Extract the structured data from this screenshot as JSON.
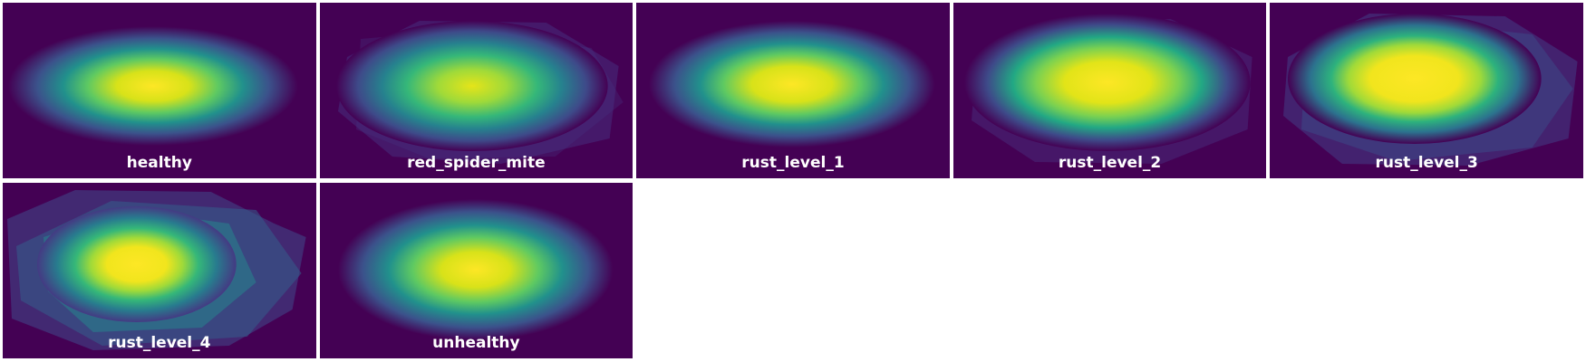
{
  "colors": {
    "background": "#440154",
    "low": "#46327e",
    "mid": "#21918c",
    "high": "#5ec962",
    "peak": "#fde725",
    "label": "#ffffff"
  },
  "tiles": [
    {
      "label": "healthy"
    },
    {
      "label": "red_spider_mite"
    },
    {
      "label": "rust_level_1"
    },
    {
      "label": "rust_level_2"
    },
    {
      "label": "rust_level_3"
    },
    {
      "label": "rust_level_4"
    },
    {
      "label": "unhealthy"
    }
  ]
}
